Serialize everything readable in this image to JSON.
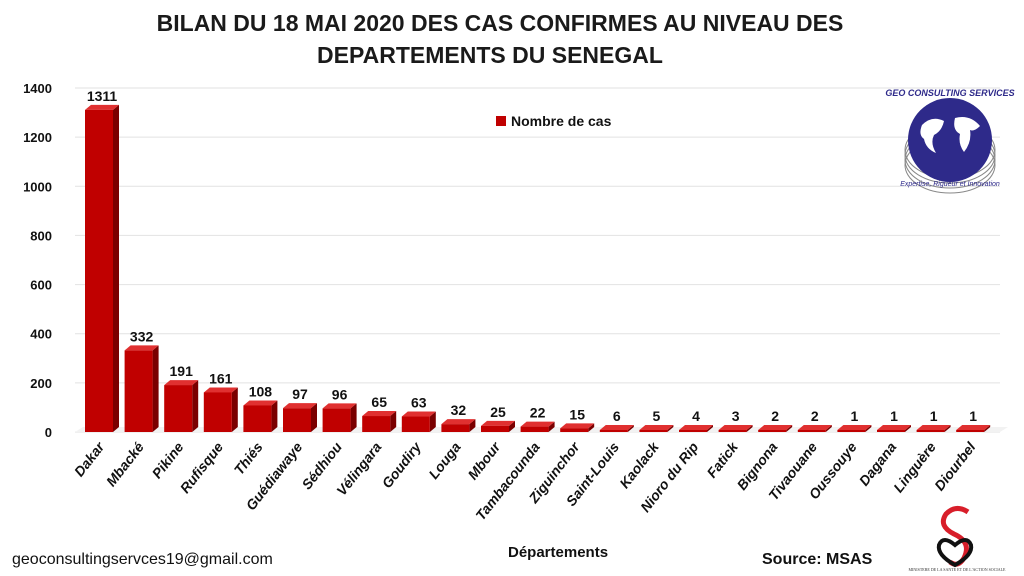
{
  "chart_data": {
    "type": "bar",
    "title": "BILAN DU 18 MAI 2020 DES CAS CONFIRMES AU NIVEAU DES DEPARTEMENTS DU SENEGAL",
    "title_lines": [
      "BILAN DU 18 MAI 2020 DES CAS CONFIRMES AU NIVEAU DES",
      "DEPARTEMENTS DU SENEGAL"
    ],
    "xlabel": "Départements",
    "ylabel": "",
    "ylim": [
      0,
      1400
    ],
    "yticks": [
      0,
      200,
      400,
      600,
      800,
      1000,
      1200,
      1400
    ],
    "grid": true,
    "legend_placement": "top-center",
    "bar_color": "#c00000",
    "categories": [
      "Dakar",
      "Mbacké",
      "Pikine",
      "Rufisque",
      "Thiés",
      "Guédiawaye",
      "Sédhiou",
      "Vélingara",
      "Goudiry",
      "Louga",
      "Mbour",
      "Tambacounda",
      "Ziguinchor",
      "Saint-Louis",
      "Kaolack",
      "Nioro du Rip",
      "Fatick",
      "Bignona",
      "Tivaouane",
      "Oussouye",
      "Dagana",
      "Linguère",
      "Diourbel"
    ],
    "series": [
      {
        "name": "Nombre de cas",
        "values": [
          1311,
          332,
          191,
          161,
          108,
          97,
          96,
          65,
          63,
          32,
          25,
          22,
          15,
          6,
          5,
          4,
          3,
          2,
          2,
          1,
          1,
          1,
          1
        ]
      }
    ]
  },
  "footer": {
    "email": "geoconsultingservces19@gmail.com",
    "source": "Source: MSAS"
  },
  "logos": {
    "geo_consulting": "GEO CONSULTING SERVICES",
    "geo_tagline": "Expertise, Rigueur et Innovation",
    "ministry": "MINISTERE DE LA SANTE ET DE L'ACTION SOCIALE"
  }
}
